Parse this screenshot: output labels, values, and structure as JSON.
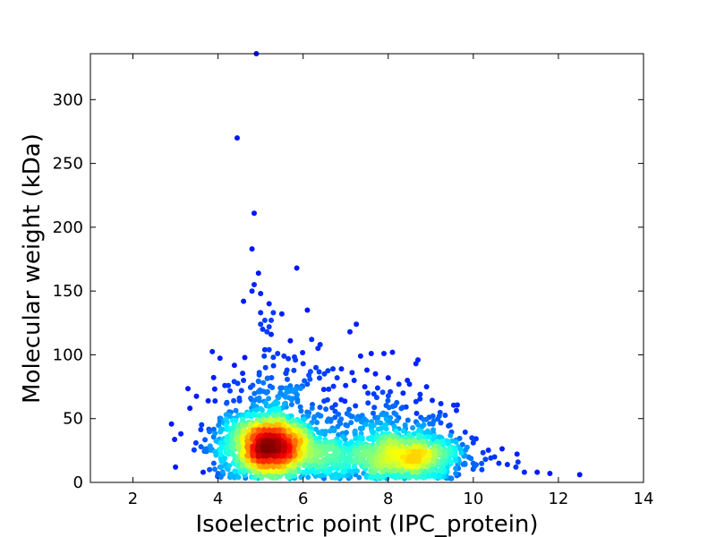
{
  "chart_data": {
    "type": "scatter",
    "title": "",
    "xlabel": "Isoelectric point (IPC_protein)",
    "ylabel": "Molecular weight (kDa)",
    "xlim": [
      1,
      14
    ],
    "ylim": [
      0,
      336
    ],
    "xticks": [
      2,
      4,
      6,
      8,
      10,
      12,
      14
    ],
    "yticks": [
      0,
      50,
      100,
      150,
      200,
      250,
      300
    ],
    "grid": false,
    "legend": "none",
    "colormap": "jet (point density)",
    "colors": {
      "low_density": "#0000aa",
      "mid_density": "#00e0e0",
      "high_density": "#ff2000"
    },
    "points": [
      [
        4.9,
        336
      ],
      [
        4.45,
        270
      ],
      [
        4.85,
        211
      ],
      [
        4.8,
        183
      ],
      [
        5.85,
        168
      ],
      [
        4.95,
        164
      ],
      [
        4.85,
        155
      ],
      [
        4.8,
        150
      ],
      [
        5.0,
        148
      ],
      [
        4.6,
        142
      ],
      [
        5.2,
        140
      ],
      [
        6.1,
        135
      ],
      [
        5.0,
        133
      ],
      [
        5.3,
        133
      ],
      [
        5.5,
        132
      ],
      [
        5.1,
        127
      ],
      [
        5.25,
        127
      ],
      [
        5.0,
        124
      ],
      [
        7.25,
        124
      ],
      [
        5.2,
        122
      ],
      [
        5.05,
        120
      ],
      [
        5.15,
        118
      ],
      [
        5.25,
        116
      ],
      [
        7.1,
        118
      ],
      [
        5.7,
        111
      ],
      [
        6.2,
        112
      ],
      [
        6.4,
        108
      ],
      [
        6.35,
        105
      ],
      [
        5.1,
        104
      ],
      [
        5.2,
        104
      ],
      [
        5.4,
        101
      ],
      [
        7.6,
        101
      ],
      [
        7.9,
        101
      ],
      [
        8.1,
        102
      ],
      [
        8.7,
        96
      ],
      [
        8.65,
        93
      ],
      [
        5.3,
        98
      ],
      [
        5.55,
        99
      ],
      [
        5.65,
        97
      ],
      [
        7.35,
        99
      ],
      [
        6.0,
        93
      ],
      [
        6.3,
        90
      ],
      [
        6.7,
        89
      ],
      [
        6.9,
        89
      ],
      [
        7.15,
        86
      ],
      [
        7.5,
        88
      ],
      [
        7.7,
        85
      ],
      [
        8.0,
        82
      ],
      [
        8.45,
        80
      ],
      [
        8.5,
        77
      ],
      [
        8.25,
        77
      ],
      [
        6.5,
        85
      ],
      [
        6.8,
        82
      ],
      [
        7.2,
        80
      ],
      [
        7.45,
        75
      ],
      [
        7.0,
        76
      ],
      [
        6.6,
        73
      ],
      [
        6.1,
        77
      ],
      [
        8.9,
        75
      ],
      [
        8.35,
        70
      ],
      [
        8.75,
        69
      ],
      [
        8.05,
        71
      ],
      [
        7.75,
        74
      ],
      [
        9.05,
        52
      ],
      [
        9.2,
        52
      ],
      [
        9.3,
        30
      ],
      [
        9.5,
        25
      ],
      [
        9.8,
        15
      ],
      [
        10.0,
        15
      ],
      [
        10.0,
        31
      ],
      [
        10.2,
        10
      ],
      [
        10.5,
        20
      ],
      [
        10.6,
        15
      ],
      [
        10.8,
        14
      ],
      [
        11.0,
        12
      ],
      [
        11.05,
        16
      ],
      [
        11.2,
        8
      ],
      [
        11.5,
        8
      ],
      [
        11.8,
        7
      ],
      [
        12.5,
        6
      ],
      [
        3.0,
        12
      ],
      [
        3.65,
        8
      ],
      [
        3.6,
        28
      ],
      [
        3.8,
        10
      ],
      [
        4.0,
        7
      ],
      [
        4.05,
        12
      ],
      [
        4.1,
        20
      ],
      [
        3.9,
        15
      ],
      [
        4.3,
        55
      ],
      [
        4.2,
        62
      ],
      [
        4.55,
        72
      ],
      [
        4.6,
        80
      ],
      [
        4.5,
        66
      ]
    ],
    "clusters": [
      {
        "center": [
          5.2,
          28
        ],
        "spread": [
          0.55,
          12
        ],
        "count": 1500
      },
      {
        "center": [
          8.4,
          20
        ],
        "spread": [
          0.7,
          10
        ],
        "count": 850
      },
      {
        "center": [
          6.6,
          20
        ],
        "spread": [
          0.55,
          11
        ],
        "count": 300
      },
      {
        "center": [
          5.3,
          55
        ],
        "spread": [
          0.7,
          20
        ],
        "count": 250
      },
      {
        "center": [
          8.0,
          45
        ],
        "spread": [
          0.8,
          12
        ],
        "count": 160
      }
    ]
  }
}
